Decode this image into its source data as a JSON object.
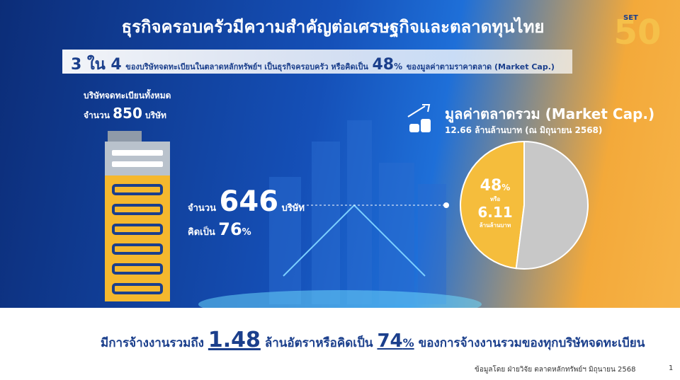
{
  "header": {
    "title": "ธุรกิจครอบครัวมีความสำคัญต่อเศรษฐกิจและตลาดทุนไทย",
    "logo": "SET"
  },
  "headline": {
    "ratio": "3 ใน 4",
    "text": "ของบริษัทจดทะเบียนในตลาดหลักทรัพย์ฯ เป็นธุรกิจครอบครัว หรือคิดเป็น",
    "share": 48,
    "unit": "%",
    "tail": "ของมูลค่าตามราคาตลาด (Market Cap.)"
  },
  "listed": {
    "label": "บริษัทจดทะเบียนทั้งหมด",
    "count_prefix": "จำนวน",
    "count": 850,
    "count_unit": "บริษัท"
  },
  "family": {
    "count_prefix": "จำนวน",
    "count": 646,
    "count_unit": "บริษัท",
    "share_prefix": "คิดเป็น",
    "share": 76,
    "unit": "%"
  },
  "market_cap": {
    "title": "มูลค่าตลาดรวม (Market Cap.)",
    "value": "12.66 ล้านล้านบาท (ณ มิถุนายน 2568)"
  },
  "pie": {
    "values": [
      48,
      52
    ],
    "colors": [
      "#f5bd3c",
      "#c8c8c8"
    ],
    "unit": "%",
    "or_text": "หรือ",
    "amount": "6.11",
    "amount_unit": "ล้านล้านบาท"
  },
  "employment": {
    "prefix": "มีการจ้างงานรวมถึง",
    "amount": "1.48",
    "middle": "ล้านอัตราหรือคิดเป็น",
    "share": 74,
    "unit": "%",
    "tail": "ของการจ้างงานรวมของทุกบริษัทจดทะเบียน"
  },
  "footer": {
    "source": "ข้อมูลโดย ฝ่ายวิจัย ตลาดหลักทรัพย์ฯ มิถุนายน 2568",
    "page": "1"
  }
}
